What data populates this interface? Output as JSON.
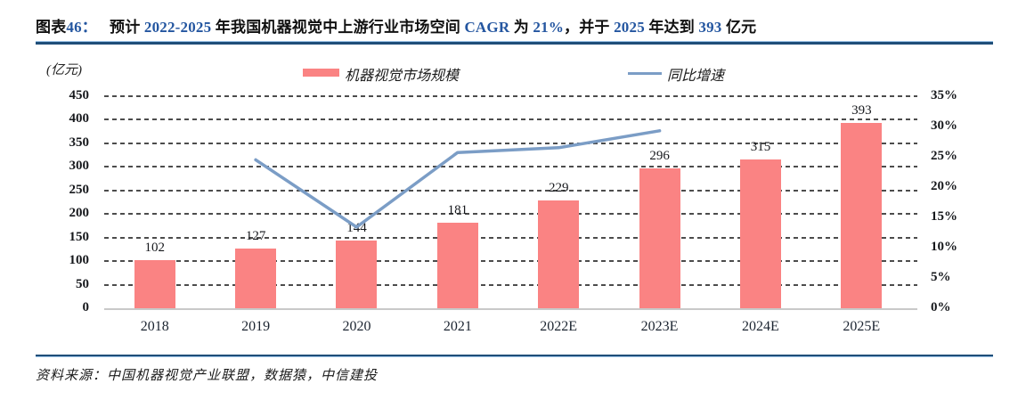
{
  "figure": {
    "label_prefix": "图表",
    "label_number": "46：",
    "title_segments": [
      {
        "text": "预计 ",
        "accent": false
      },
      {
        "text": "2022-2025",
        "accent": true
      },
      {
        "text": " 年我国机器视觉中上游行业市场空间 ",
        "accent": false
      },
      {
        "text": "CAGR",
        "accent": true
      },
      {
        "text": " 为 ",
        "accent": false
      },
      {
        "text": "21%",
        "accent": true
      },
      {
        "text": "，并于 ",
        "accent": false
      },
      {
        "text": "2025",
        "accent": true
      },
      {
        "text": " 年达到 ",
        "accent": false
      },
      {
        "text": "393",
        "accent": true
      },
      {
        "text": " 亿元",
        "accent": false
      }
    ],
    "source_note": "资料来源：中国机器视觉产业联盟，数据猿，中信建投"
  },
  "chart_data": {
    "type": "bar",
    "subtype": "bar+line combo, dual axis",
    "unit_label": "(亿元)",
    "categories": [
      "2018",
      "2019",
      "2020",
      "2021",
      "2022E",
      "2023E",
      "2024E",
      "2025E"
    ],
    "series": [
      {
        "name": "机器视觉市场规模",
        "type": "bar",
        "axis": "left",
        "color": "#FA8383",
        "values": [
          102,
          127,
          144,
          181,
          229,
          296,
          315,
          393
        ]
      },
      {
        "name": "同比增速",
        "type": "line",
        "axis": "right",
        "color": "#7B9DC6",
        "unit": "%",
        "values": [
          null,
          24.5,
          13.4,
          25.7,
          26.5,
          29.3,
          null,
          null
        ]
      }
    ],
    "left_axis": {
      "min": 0,
      "max": 450,
      "step": 50,
      "ticks": [
        "0",
        "50",
        "100",
        "150",
        "200",
        "250",
        "300",
        "350",
        "400",
        "450"
      ]
    },
    "right_axis": {
      "min": 0,
      "max": 35,
      "step": 5,
      "ticks": [
        "0%",
        "5%",
        "10%",
        "15%",
        "20%",
        "25%",
        "30%",
        "35%"
      ]
    },
    "grid": "horizontal dashed",
    "legend_position": "top",
    "bar_labels_shown": true
  },
  "colors": {
    "bar": "#FA8383",
    "line": "#7B9DC6",
    "accent_text": "#2456A0",
    "rule": "#1F4E79",
    "grid": "#4c4c4c",
    "baseline": "#C9C9C9"
  }
}
